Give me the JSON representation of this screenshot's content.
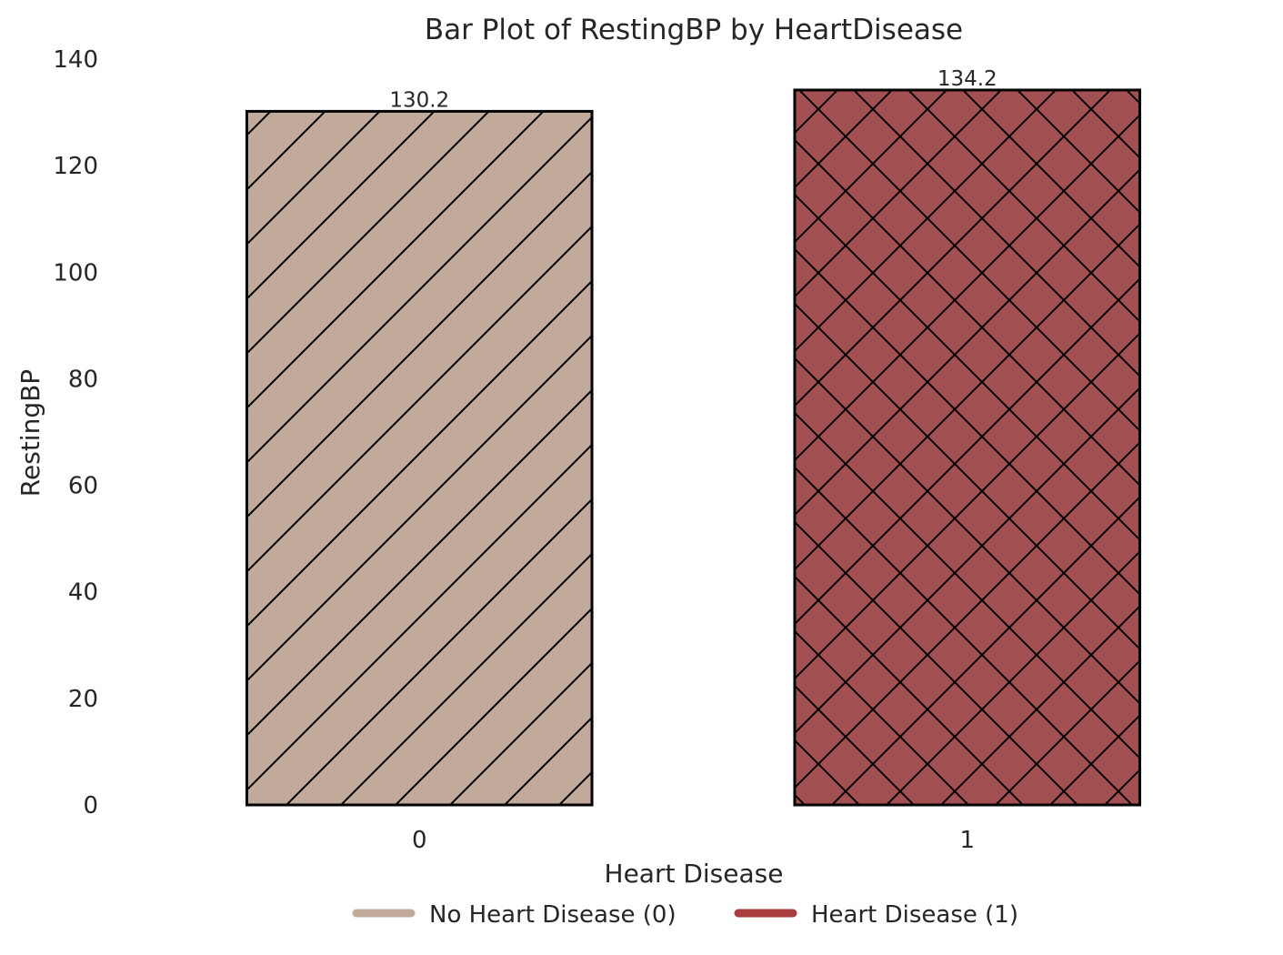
{
  "chart_data": {
    "type": "bar",
    "title": "Bar Plot of RestingBP by HeartDisease",
    "xlabel": "Heart Disease",
    "ylabel": "RestingBP",
    "categories": [
      "0",
      "1"
    ],
    "values": [
      130.2,
      134.2
    ],
    "data_labels": [
      "130.2",
      "134.2"
    ],
    "ylim": [
      0,
      140
    ],
    "yticks": [
      0,
      20,
      40,
      60,
      80,
      100,
      120,
      140
    ],
    "grid": false,
    "colors": [
      "#c2aa9b",
      "#a35052"
    ],
    "hatches": [
      "diagonal",
      "crosshatch"
    ],
    "legend": {
      "placement": "bottom-center",
      "entries": [
        {
          "label": "No Heart Disease (0)",
          "color": "#c2aa9b"
        },
        {
          "label": "Heart Disease (1)",
          "color": "#a93c3f"
        }
      ]
    }
  }
}
